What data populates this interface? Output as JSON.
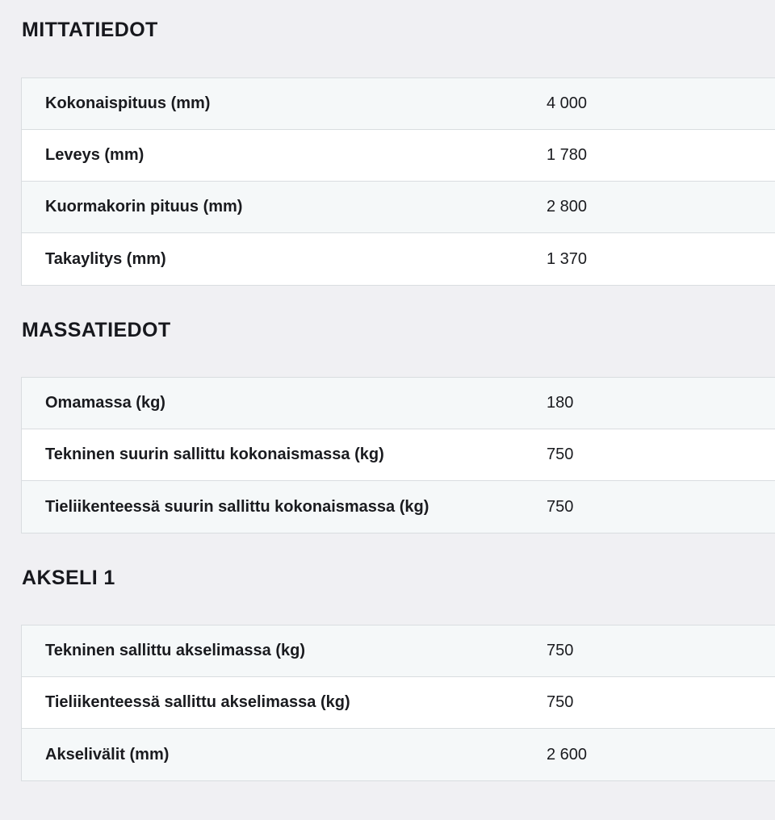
{
  "colors": {
    "page_background": "#f0f0f3",
    "row_tint": "#f5f8f9",
    "row_white": "#ffffff",
    "border": "#d9dde0",
    "text": "#1a1b1f"
  },
  "sections": [
    {
      "title": "MITTATIEDOT",
      "rows": [
        {
          "label": "Kokonaispituus (mm)",
          "value": "4 000"
        },
        {
          "label": "Leveys (mm)",
          "value": "1 780"
        },
        {
          "label": "Kuormakorin pituus (mm)",
          "value": "2 800"
        },
        {
          "label": "Takaylitys (mm)",
          "value": "1 370"
        }
      ]
    },
    {
      "title": "MASSATIEDOT",
      "rows": [
        {
          "label": "Omamassa (kg)",
          "value": "180"
        },
        {
          "label": "Tekninen suurin sallittu kokonaismassa (kg)",
          "value": "750"
        },
        {
          "label": "Tieliikenteessä suurin sallittu kokonaismassa (kg)",
          "value": "750"
        }
      ]
    },
    {
      "title": "AKSELI 1",
      "rows": [
        {
          "label": "Tekninen sallittu akselimassa (kg)",
          "value": "750"
        },
        {
          "label": "Tieliikenteessä sallittu akselimassa (kg)",
          "value": "750"
        },
        {
          "label": "Akselivälit (mm)",
          "value": "2 600"
        }
      ]
    }
  ]
}
